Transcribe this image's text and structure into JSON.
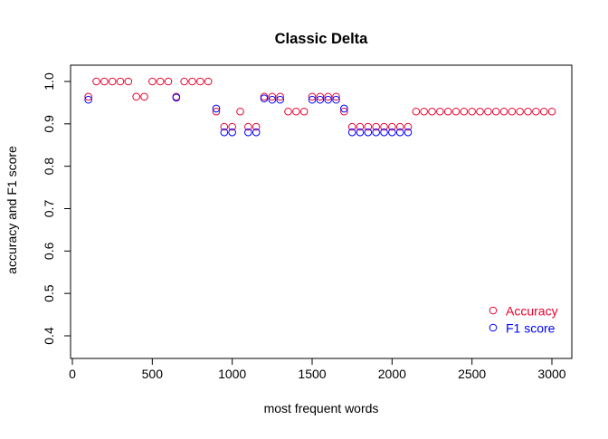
{
  "chart_data": {
    "type": "scatter",
    "title": "Classic Delta",
    "xlabel": "most frequent words",
    "ylabel": "accuracy and F1 score",
    "xlim": [
      0,
      3000
    ],
    "ylim": [
      0.4,
      1.0
    ],
    "x_ticks": [
      0,
      500,
      1000,
      1500,
      2000,
      2500,
      3000
    ],
    "y_ticks": [
      0.4,
      0.5,
      0.6,
      0.7,
      0.8,
      0.9,
      1.0
    ],
    "grid": false,
    "legend_position": "bottom-right",
    "x": [
      100,
      150,
      200,
      250,
      300,
      350,
      400,
      450,
      500,
      550,
      600,
      650,
      700,
      750,
      800,
      850,
      900,
      950,
      1000,
      1050,
      1100,
      1150,
      1200,
      1250,
      1300,
      1350,
      1400,
      1450,
      1500,
      1550,
      1600,
      1650,
      1700,
      1750,
      1800,
      1850,
      1900,
      1950,
      2000,
      2050,
      2100,
      2150,
      2200,
      2250,
      2300,
      2350,
      2400,
      2450,
      2500,
      2550,
      2600,
      2650,
      2700,
      2750,
      2800,
      2850,
      2900,
      2950,
      3000
    ],
    "series": [
      {
        "name": "Accuracy",
        "color": "#e8002d",
        "values": [
          0.964,
          1.0,
          1.0,
          1.0,
          1.0,
          1.0,
          0.964,
          0.964,
          1.0,
          1.0,
          1.0,
          0.964,
          1.0,
          1.0,
          1.0,
          1.0,
          0.929,
          0.893,
          0.893,
          0.929,
          0.893,
          0.893,
          0.964,
          0.964,
          0.964,
          0.929,
          0.929,
          0.929,
          0.964,
          0.964,
          0.964,
          0.964,
          0.929,
          0.893,
          0.893,
          0.893,
          0.893,
          0.893,
          0.893,
          0.893,
          0.893,
          0.929,
          0.929,
          0.929,
          0.929,
          0.929,
          0.929,
          0.929,
          0.929,
          0.929,
          0.929,
          0.929,
          0.929,
          0.929,
          0.929,
          0.929,
          0.929,
          0.929,
          0.929
        ]
      },
      {
        "name": "F1 score",
        "color": "#0000ff",
        "values": [
          0.957,
          null,
          null,
          null,
          null,
          null,
          null,
          null,
          null,
          null,
          null,
          0.962,
          null,
          null,
          null,
          null,
          0.936,
          0.88,
          0.88,
          null,
          0.88,
          0.88,
          0.96,
          0.957,
          0.957,
          null,
          null,
          null,
          0.957,
          0.957,
          0.957,
          0.957,
          0.936,
          0.88,
          0.88,
          0.88,
          0.88,
          0.88,
          0.88,
          0.88,
          0.88,
          null,
          null,
          null,
          null,
          null,
          null,
          null,
          null,
          null,
          null,
          null,
          null,
          null,
          null,
          null,
          null,
          null,
          null
        ]
      }
    ]
  }
}
